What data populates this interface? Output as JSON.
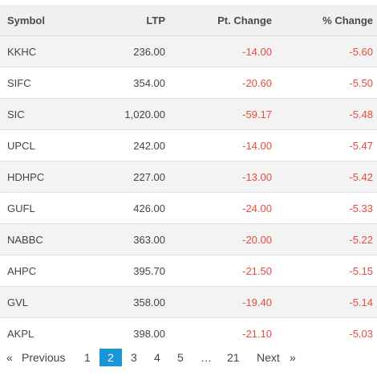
{
  "table": {
    "headers": {
      "symbol": "Symbol",
      "ltp": "LTP",
      "pt_change": "Pt. Change",
      "pct_change": "% Change"
    },
    "rows": [
      {
        "symbol": "KKHC",
        "ltp": "236.00",
        "pt_change": "-14.00",
        "pct_change": "-5.60"
      },
      {
        "symbol": "SIFC",
        "ltp": "354.00",
        "pt_change": "-20.60",
        "pct_change": "-5.50"
      },
      {
        "symbol": "SIC",
        "ltp": "1,020.00",
        "pt_change": "-59.17",
        "pct_change": "-5.48"
      },
      {
        "symbol": "UPCL",
        "ltp": "242.00",
        "pt_change": "-14.00",
        "pct_change": "-5.47"
      },
      {
        "symbol": "HDHPC",
        "ltp": "227.00",
        "pt_change": "-13.00",
        "pct_change": "-5.42"
      },
      {
        "symbol": "GUFL",
        "ltp": "426.00",
        "pt_change": "-24.00",
        "pct_change": "-5.33"
      },
      {
        "symbol": "NABBC",
        "ltp": "363.00",
        "pt_change": "-20.00",
        "pct_change": "-5.22"
      },
      {
        "symbol": "AHPC",
        "ltp": "395.70",
        "pt_change": "-21.50",
        "pct_change": "-5.15"
      },
      {
        "symbol": "GVL",
        "ltp": "358.00",
        "pt_change": "-19.40",
        "pct_change": "-5.14"
      },
      {
        "symbol": "AKPL",
        "ltp": "398.00",
        "pt_change": "-21.10",
        "pct_change": "-5.03"
      }
    ]
  },
  "pagination": {
    "prev_arrow": "«",
    "prev_label": "Previous",
    "pages": [
      "1",
      "2",
      "3",
      "4",
      "5"
    ],
    "current": "2",
    "ellipsis": "…",
    "last_page": "21",
    "next_label": "Next",
    "next_arrow": "»"
  },
  "colors": {
    "negative": "#e74c3c",
    "active_page": "#1a96d8",
    "header_bg": "#eef0f2",
    "stripe_bg": "#f3f3f3"
  }
}
